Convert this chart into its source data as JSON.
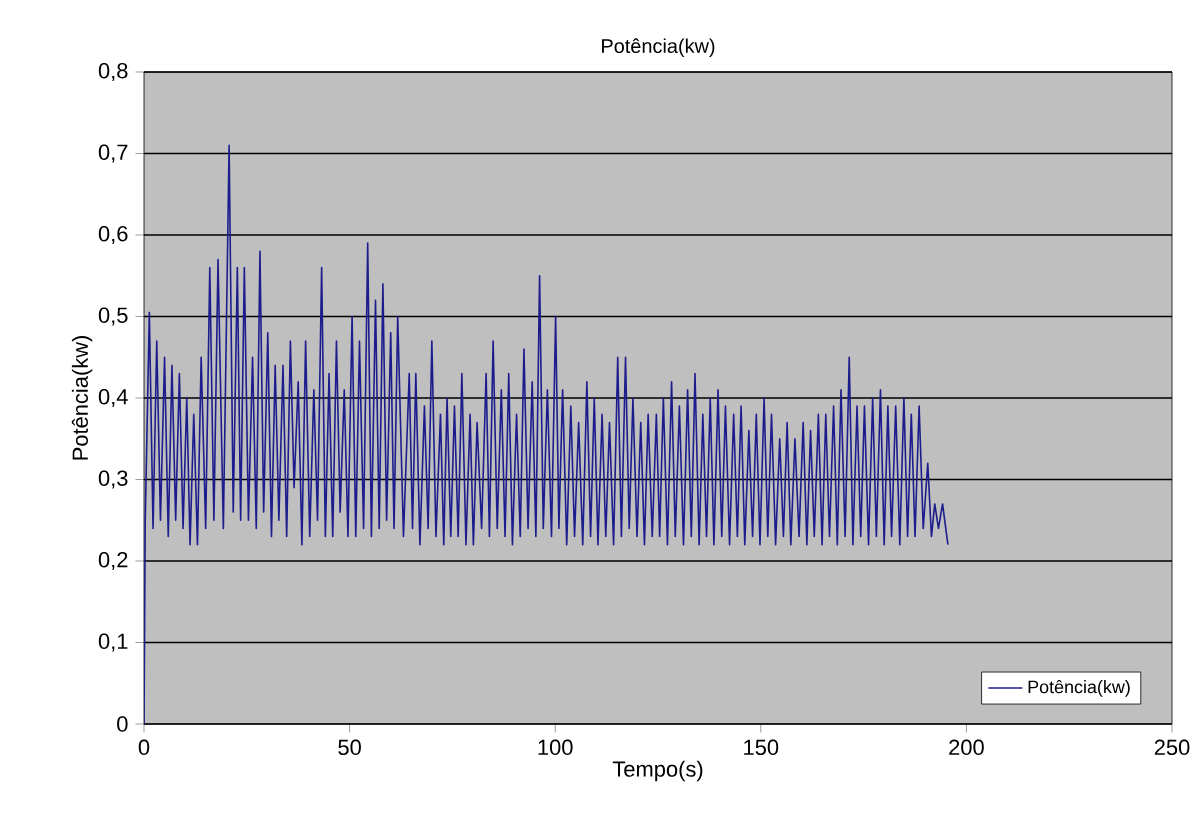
{
  "chart_data": {
    "type": "line",
    "title": "Potência(kw)",
    "xlabel": "Tempo(s)",
    "ylabel": "Potência(kw)",
    "xlim": [
      0,
      250
    ],
    "xticks": [
      0,
      50,
      100,
      150,
      200,
      250
    ],
    "ylim": [
      0,
      0.8
    ],
    "yticks": [
      0,
      {
        "value": 0.1,
        "label": "0,1"
      },
      {
        "value": 0.2,
        "label": "0,2"
      },
      {
        "value": 0.3,
        "label": "0,3"
      },
      {
        "value": 0.4,
        "label": "0,4"
      },
      {
        "value": 0.5,
        "label": "0,5"
      },
      {
        "value": 0.6,
        "label": "0,6"
      },
      {
        "value": 0.7,
        "label": "0,7"
      },
      {
        "value": 0.8,
        "label": "0,8"
      }
    ],
    "grid": "y",
    "legend": "bottom right",
    "marker": "none",
    "line_style": "solid",
    "series": [
      {
        "name": "Potência(kw)",
        "color": "#1c1c8c",
        "x": [
          0,
          0.3,
          1.3,
          2.2,
          3.1,
          4,
          5,
          5.9,
          6.8,
          7.7,
          8.6,
          9.5,
          10.4,
          11.2,
          12.1,
          13,
          13.9,
          15,
          16,
          17,
          18,
          19.3,
          20.7,
          21.7,
          22.7,
          23.5,
          24.4,
          25.4,
          26.4,
          27.3,
          28.2,
          29.1,
          30.1,
          31,
          31.9,
          32.8,
          33.8,
          34.7,
          35.6,
          36.5,
          37.5,
          38.4,
          39.3,
          40.3,
          41.3,
          42.2,
          43.2,
          44.1,
          45,
          45.9,
          46.8,
          47.7,
          48.7,
          49.6,
          50.6,
          51.5,
          52.4,
          53.4,
          54.4,
          55.3,
          56.3,
          57.2,
          58.1,
          59,
          60,
          60.8,
          61.7,
          63.1,
          64.5,
          65.3,
          66.1,
          67.1,
          68.2,
          69.1,
          70,
          71,
          72.1,
          72.9,
          73.7,
          74.6,
          75.5,
          76.4,
          77.3,
          78.3,
          79.3,
          80.1,
          81,
          82.1,
          83.2,
          84,
          84.9,
          85.9,
          86.9,
          87.8,
          88.7,
          89.6,
          90.6,
          91.5,
          92.4,
          93.4,
          94.4,
          95.3,
          96.2,
          97.1,
          98.1,
          99.1,
          100.1,
          100.9,
          101.8,
          102.8,
          103.8,
          104.7,
          105.7,
          106.7,
          107.7,
          108.6,
          109.5,
          110.4,
          111.4,
          112.3,
          113.2,
          114.2,
          115.2,
          116.1,
          117.1,
          118,
          118.9,
          119.9,
          120.8,
          121.7,
          122.6,
          123.6,
          124.6,
          125.4,
          126.3,
          127.3,
          128.3,
          129.2,
          130.2,
          131.2,
          132.2,
          133.1,
          134,
          135,
          135.9,
          136.8,
          137.7,
          138.6,
          139.6,
          140.5,
          141.4,
          142.4,
          143.4,
          144.3,
          145.2,
          146.1,
          147.1,
          148,
          148.9,
          149.8,
          150.8,
          151.7,
          152.6,
          153.6,
          154.6,
          155.5,
          156.4,
          157.3,
          158.3,
          159.3,
          160.3,
          161.2,
          162.1,
          163,
          164,
          164.9,
          165.8,
          166.7,
          167.7,
          168.6,
          169.5,
          170.5,
          171.5,
          172.4,
          173.4,
          174.3,
          175.2,
          176.2,
          177.2,
          178.1,
          179.1,
          180,
          180.9,
          181.8,
          182.8,
          183.8,
          184.8,
          185.7,
          186.6,
          187.5,
          188.5,
          189.5,
          190.6,
          191.5,
          192.3,
          193.2,
          194.2,
          195.5
        ],
        "values": [
          0,
          0.25,
          0.505,
          0.24,
          0.47,
          0.25,
          0.45,
          0.23,
          0.44,
          0.25,
          0.43,
          0.24,
          0.4,
          0.22,
          0.38,
          0.22,
          0.45,
          0.24,
          0.56,
          0.25,
          0.57,
          0.24,
          0.71,
          0.26,
          0.56,
          0.25,
          0.56,
          0.25,
          0.45,
          0.24,
          0.58,
          0.26,
          0.48,
          0.23,
          0.44,
          0.25,
          0.44,
          0.23,
          0.47,
          0.29,
          0.42,
          0.22,
          0.47,
          0.23,
          0.41,
          0.25,
          0.56,
          0.23,
          0.43,
          0.23,
          0.47,
          0.26,
          0.41,
          0.23,
          0.5,
          0.23,
          0.47,
          0.24,
          0.59,
          0.23,
          0.52,
          0.24,
          0.54,
          0.25,
          0.48,
          0.24,
          0.5,
          0.23,
          0.43,
          0.24,
          0.43,
          0.22,
          0.39,
          0.24,
          0.47,
          0.23,
          0.38,
          0.22,
          0.4,
          0.23,
          0.39,
          0.23,
          0.43,
          0.22,
          0.38,
          0.22,
          0.37,
          0.24,
          0.43,
          0.23,
          0.47,
          0.24,
          0.41,
          0.23,
          0.43,
          0.22,
          0.38,
          0.23,
          0.46,
          0.24,
          0.42,
          0.23,
          0.55,
          0.24,
          0.41,
          0.23,
          0.5,
          0.24,
          0.41,
          0.22,
          0.39,
          0.23,
          0.37,
          0.22,
          0.42,
          0.23,
          0.4,
          0.22,
          0.38,
          0.23,
          0.37,
          0.22,
          0.45,
          0.23,
          0.45,
          0.24,
          0.4,
          0.23,
          0.37,
          0.22,
          0.38,
          0.23,
          0.38,
          0.23,
          0.4,
          0.22,
          0.42,
          0.23,
          0.39,
          0.22,
          0.41,
          0.23,
          0.43,
          0.22,
          0.38,
          0.23,
          0.4,
          0.22,
          0.41,
          0.23,
          0.39,
          0.22,
          0.38,
          0.23,
          0.39,
          0.22,
          0.36,
          0.23,
          0.38,
          0.22,
          0.4,
          0.23,
          0.38,
          0.22,
          0.35,
          0.23,
          0.37,
          0.22,
          0.35,
          0.23,
          0.37,
          0.22,
          0.36,
          0.23,
          0.38,
          0.22,
          0.38,
          0.23,
          0.39,
          0.22,
          0.41,
          0.23,
          0.45,
          0.22,
          0.39,
          0.23,
          0.39,
          0.22,
          0.4,
          0.23,
          0.41,
          0.22,
          0.39,
          0.23,
          0.39,
          0.22,
          0.4,
          0.23,
          0.38,
          0.23,
          0.39,
          0.24,
          0.32,
          0.23,
          0.27,
          0.24,
          0.27,
          0.22
        ]
      }
    ]
  }
}
